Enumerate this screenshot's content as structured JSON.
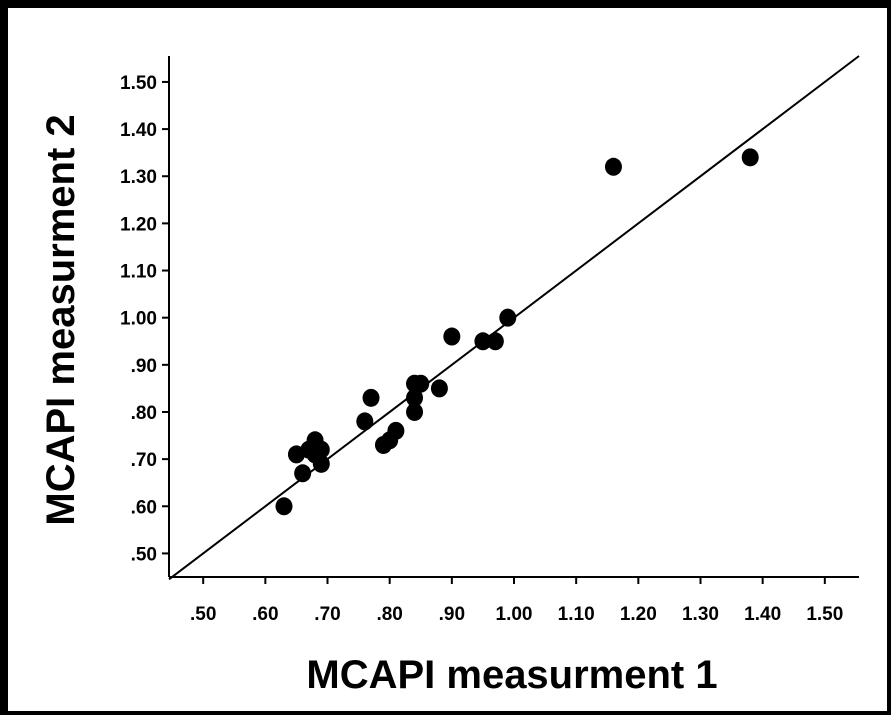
{
  "chart_data": {
    "type": "scatter",
    "xlabel": "MCAPI measurment 1",
    "ylabel": "MCAPI measurment 2",
    "xlim": [
      0.445,
      1.555
    ],
    "ylim": [
      0.45,
      1.555
    ],
    "x_ticks": [
      0.5,
      0.6,
      0.7,
      0.8,
      0.9,
      1.0,
      1.1,
      1.2,
      1.3,
      1.4,
      1.5
    ],
    "x_tick_labels": [
      ".50",
      ".60",
      ".70",
      ".80",
      ".90",
      "1.00",
      "1.10",
      "1.20",
      "1.30",
      "1.40",
      "1.50"
    ],
    "y_ticks": [
      0.5,
      0.6,
      0.7,
      0.8,
      0.9,
      1.0,
      1.1,
      1.2,
      1.3,
      1.4,
      1.5
    ],
    "y_tick_labels": [
      ".50",
      ".60",
      ".70",
      ".80",
      ".90",
      "1.00",
      "1.10",
      "1.20",
      "1.30",
      "1.40",
      "1.50"
    ],
    "grid": false,
    "reference_line": {
      "type": "identity",
      "x": [
        0.445,
        1.555
      ],
      "y": [
        0.445,
        1.555
      ]
    },
    "points": [
      {
        "x": 0.63,
        "y": 0.6
      },
      {
        "x": 0.65,
        "y": 0.71
      },
      {
        "x": 0.66,
        "y": 0.67
      },
      {
        "x": 0.67,
        "y": 0.72
      },
      {
        "x": 0.68,
        "y": 0.74
      },
      {
        "x": 0.68,
        "y": 0.71
      },
      {
        "x": 0.69,
        "y": 0.72
      },
      {
        "x": 0.69,
        "y": 0.69
      },
      {
        "x": 0.76,
        "y": 0.78
      },
      {
        "x": 0.77,
        "y": 0.83
      },
      {
        "x": 0.79,
        "y": 0.73
      },
      {
        "x": 0.8,
        "y": 0.74
      },
      {
        "x": 0.81,
        "y": 0.76
      },
      {
        "x": 0.84,
        "y": 0.86
      },
      {
        "x": 0.84,
        "y": 0.83
      },
      {
        "x": 0.84,
        "y": 0.8
      },
      {
        "x": 0.85,
        "y": 0.86
      },
      {
        "x": 0.88,
        "y": 0.85
      },
      {
        "x": 0.9,
        "y": 0.96
      },
      {
        "x": 0.95,
        "y": 0.95
      },
      {
        "x": 0.97,
        "y": 0.95
      },
      {
        "x": 0.99,
        "y": 1.0
      },
      {
        "x": 1.16,
        "y": 1.32
      },
      {
        "x": 1.38,
        "y": 1.34
      }
    ]
  }
}
